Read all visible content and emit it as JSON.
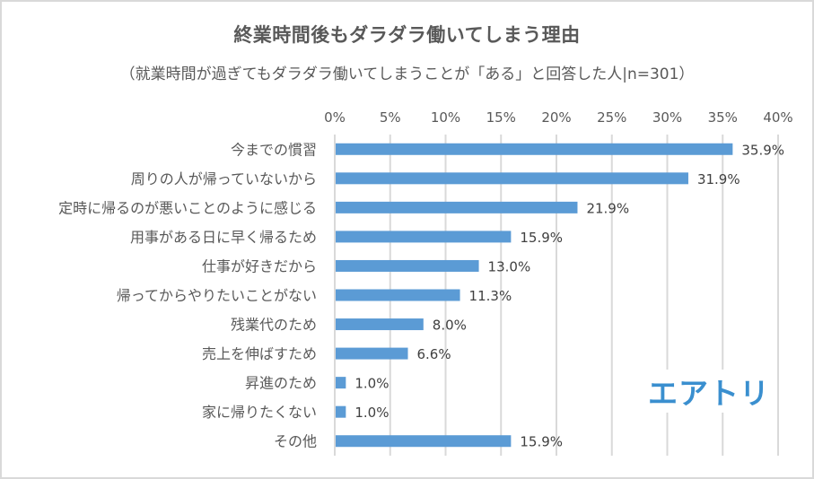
{
  "chart_data": {
    "type": "bar",
    "orientation": "horizontal",
    "title": "終業時間後もダラダラ働いてしまう理由",
    "subtitle": "（就業時間が過ぎてもダラダラ働いてしまうことが「ある」と回答した人|n=301）",
    "xlabel": "",
    "ylabel": "",
    "xlim": [
      0,
      40
    ],
    "x_ticks": [
      "0%",
      "5%",
      "10%",
      "15%",
      "20%",
      "25%",
      "30%",
      "35%",
      "40%"
    ],
    "x_tick_values": [
      0,
      5,
      10,
      15,
      20,
      25,
      30,
      35,
      40
    ],
    "x_axis_position": "top",
    "grid": true,
    "legend": "none",
    "bar_color": "#5b9bd5",
    "categories": [
      "今までの慣習",
      "周りの人が帰っていないから",
      "定時に帰るのが悪いことのように感じる",
      "用事がある日に早く帰るため",
      "仕事が好きだから",
      "帰ってからやりたいことがない",
      "残業代のため",
      "売上を伸ばすため",
      "昇進のため",
      "家に帰りたくない",
      "その他"
    ],
    "values": [
      35.9,
      31.9,
      21.9,
      15.9,
      13.0,
      11.3,
      8.0,
      6.6,
      1.0,
      1.0,
      15.9
    ],
    "data_labels": [
      "35.9%",
      "31.9%",
      "21.9%",
      "15.9%",
      "13.0%",
      "11.3%",
      "8.0%",
      "6.6%",
      "1.0%",
      "1.0%",
      "15.9%"
    ]
  },
  "logo": {
    "text": "エアトリ",
    "color": "#3a8fcf"
  }
}
